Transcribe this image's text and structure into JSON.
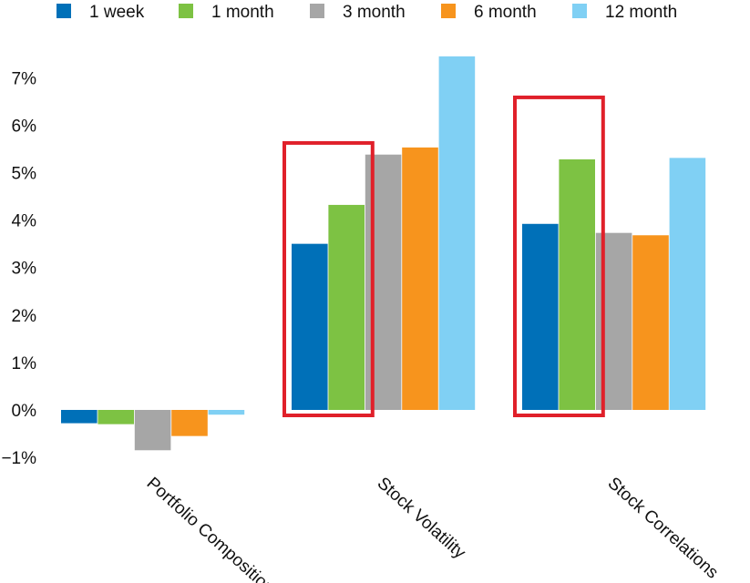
{
  "chart_data": {
    "type": "bar",
    "categories": [
      "Portfolio Composition",
      "Stock Volatility",
      "Stock Correlations"
    ],
    "series": [
      {
        "name": "1 week",
        "color": "#0070b8",
        "values": [
          -0.28,
          3.5,
          3.92
        ]
      },
      {
        "name": "1 month",
        "color": "#7dc243",
        "values": [
          -0.3,
          4.32,
          5.28
        ]
      },
      {
        "name": "3 month",
        "color": "#a6a6a6",
        "values": [
          -0.85,
          5.38,
          3.73
        ]
      },
      {
        "name": "6 month",
        "color": "#f7941d",
        "values": [
          -0.55,
          5.53,
          3.68
        ]
      },
      {
        "name": "12 month",
        "color": "#80d0f4",
        "values": [
          -0.1,
          7.45,
          5.31
        ]
      }
    ],
    "y_ticks": [
      "7%",
      "6%",
      "5%",
      "4%",
      "3%",
      "2%",
      "1%",
      "0%",
      "−1%"
    ],
    "ylim": [
      -1,
      7
    ],
    "grid": false,
    "legend_position": "top",
    "highlights": [
      {
        "category": "Stock Volatility",
        "series": [
          "1 week",
          "1 month"
        ],
        "color": "#e0202a"
      },
      {
        "category": "Stock Correlations",
        "series": [
          "1 week",
          "1 month"
        ],
        "color": "#e0202a"
      }
    ]
  }
}
